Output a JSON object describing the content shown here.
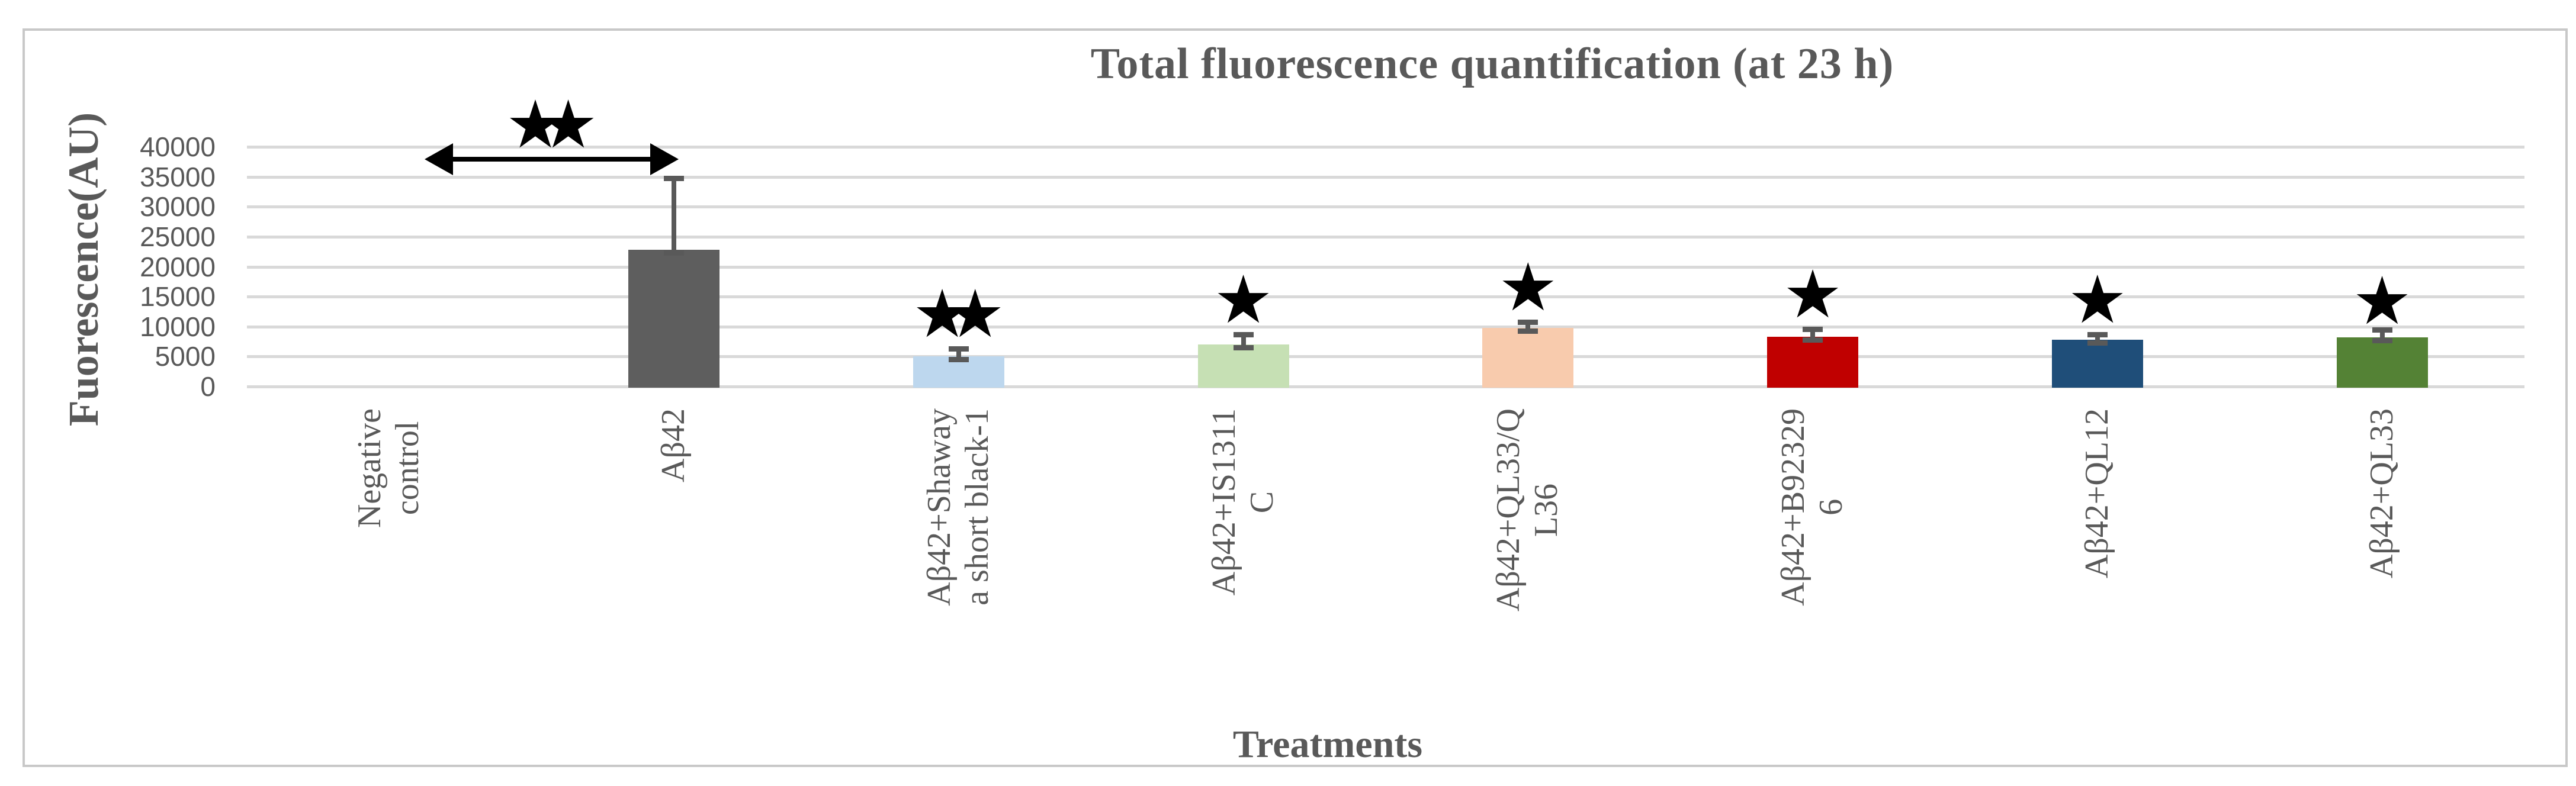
{
  "window": {
    "background": "#FFFFFF",
    "frame_border_color": "#C8C8C8"
  },
  "chart_data": {
    "type": "bar",
    "title": "Total fluorescence quantification (at 23 h)",
    "xlabel": "Treatments",
    "ylabel": "Fuorescence(AU)",
    "ylim": [
      0,
      40000
    ],
    "ytick_step": 5000,
    "yticks": [
      0,
      5000,
      10000,
      15000,
      20000,
      25000,
      30000,
      35000,
      40000
    ],
    "grid": true,
    "legend": false,
    "categories": [
      {
        "label": "Negative control",
        "lines": [
          "Negative",
          "control"
        ]
      },
      {
        "label": "Aβ42",
        "lines": [
          "Aβ42"
        ]
      },
      {
        "label": "Aβ42+Shawaya short black-1",
        "lines": [
          "Aβ42+Shaway",
          "a short black-1"
        ]
      },
      {
        "label": "Aβ42+IS1311C",
        "lines": [
          "Aβ42+IS1311",
          "C"
        ]
      },
      {
        "label": "Aβ42+QL33/QL36",
        "lines": [
          "Aβ42+QL33/Q",
          "L36"
        ]
      },
      {
        "label": "Aβ42+B923296",
        "lines": [
          "Aβ42+B92329",
          "6"
        ]
      },
      {
        "label": "Aβ42+QL12",
        "lines": [
          "Aβ42+QL12"
        ]
      },
      {
        "label": "Aβ42+QL33",
        "lines": [
          "Aβ42+QL33"
        ]
      }
    ],
    "series": [
      {
        "name": "Total fluorescence (AU)",
        "values": [
          0,
          22800,
          5000,
          7000,
          9800,
          8300,
          7800,
          8200
        ]
      }
    ],
    "error_plus": [
      0,
      12000,
      1300,
      1700,
      1000,
      1300,
      900,
      1300
    ],
    "bar_colors": [
      "none",
      "#5E5E5E",
      "#BDD7EE",
      "#C6E0B4",
      "#F8CBAD",
      "#C00000",
      "#1F4E79",
      "#548235"
    ],
    "annotations": {
      "significance_stars": [
        {
          "category_index": 2,
          "stars": "★★"
        },
        {
          "category_index": 3,
          "stars": "★"
        },
        {
          "category_index": 4,
          "stars": "★"
        },
        {
          "category_index": 5,
          "stars": "★"
        },
        {
          "category_index": 6,
          "stars": "★"
        },
        {
          "category_index": 7,
          "stars": "★"
        }
      ],
      "comparison_arrow": {
        "from_category_index": 0,
        "to_category_index": 1,
        "stars": "★★",
        "style": "double-headed-arrow"
      }
    },
    "colors": {
      "text": "#595959",
      "gridline": "#D9D9D9",
      "error_bar": "#595959",
      "star": "#000000",
      "arrow": "#000000"
    }
  }
}
